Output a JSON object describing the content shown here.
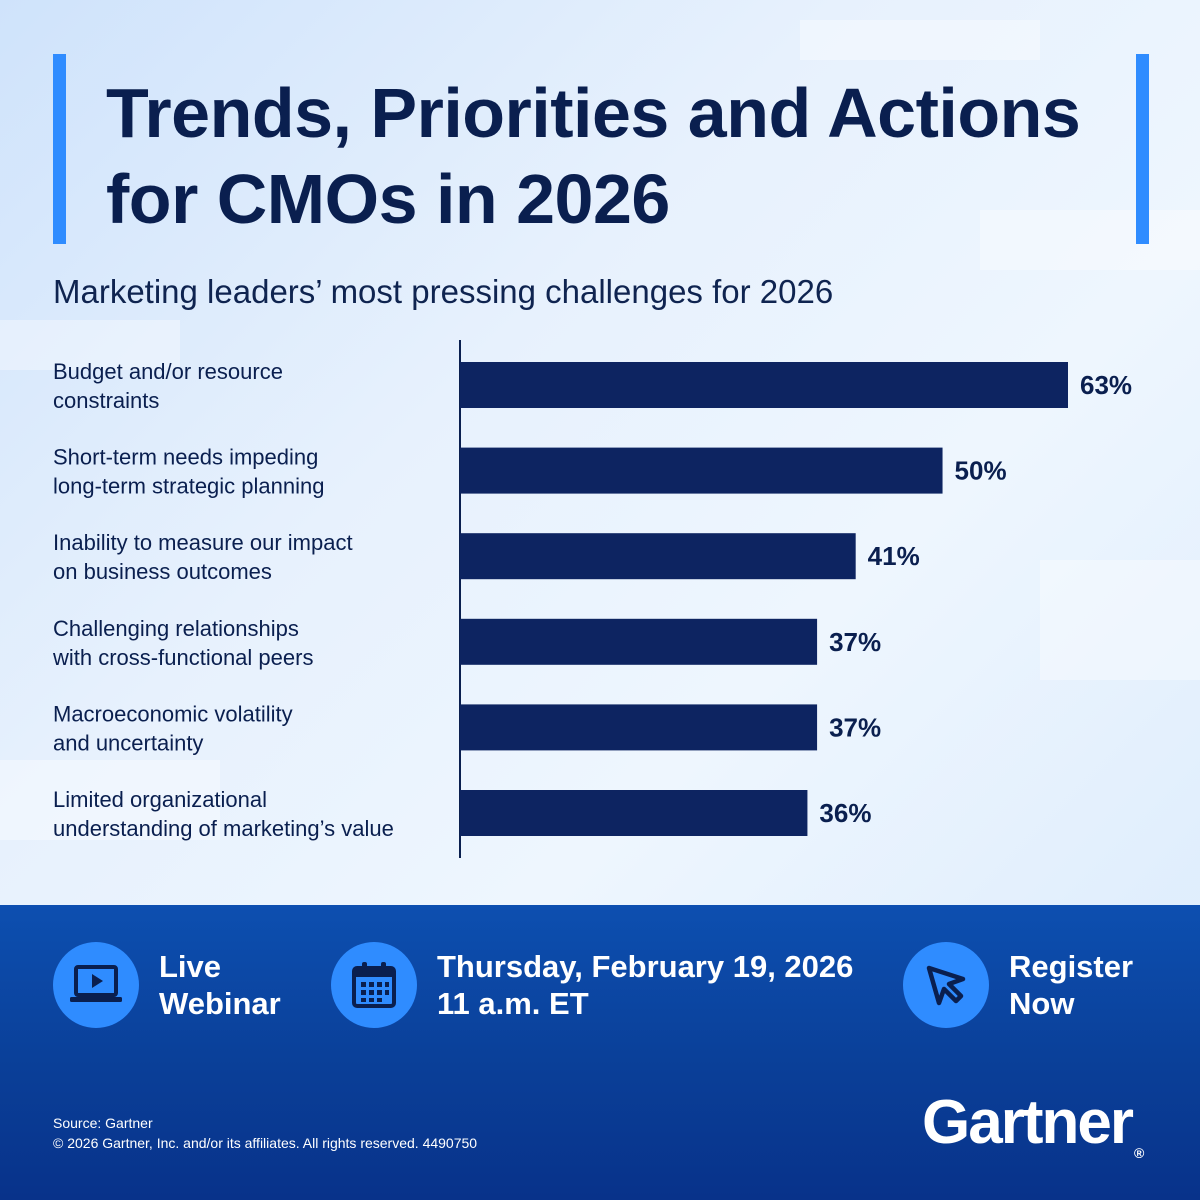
{
  "header": {
    "title_line1": "Trends, Priorities and Actions",
    "title_line2": "for CMOs in 2026",
    "subtitle": "Marketing leaders’ most pressing challenges for 2026"
  },
  "chart_data": {
    "type": "bar",
    "orientation": "horizontal",
    "title": "Marketing leaders’ most pressing challenges for 2026",
    "categories": [
      [
        "Budget and/or resource",
        "constraints"
      ],
      [
        "Short-term needs impeding",
        "long-term strategic planning"
      ],
      [
        "Inability to measure our impact",
        "on business outcomes"
      ],
      [
        "Challenging relationships",
        "with cross-functional peers"
      ],
      [
        "Macroeconomic volatility",
        "and uncertainty"
      ],
      [
        "Limited organizational",
        "understanding of marketing’s value"
      ]
    ],
    "values": [
      63,
      50,
      41,
      37,
      37,
      36
    ],
    "value_labels": [
      "63%",
      "50%",
      "41%",
      "37%",
      "37%",
      "36%"
    ],
    "unit": "%",
    "xlim": [
      0,
      63
    ],
    "grid": false,
    "bar_color": "#0d2461"
  },
  "footer": {
    "webinar_line1": "Live",
    "webinar_line2": "Webinar",
    "date_line1": "Thursday, February 19, 2026",
    "date_line2": "11 a.m. ET",
    "register_line1": "Register",
    "register_line2": "Now",
    "source_line1": "Source: Gartner",
    "source_line2": "© 2026 Gartner, Inc. and/or its affiliates. All rights reserved. 4490750",
    "logo_text": "Gartner",
    "logo_mark": "®"
  },
  "colors": {
    "accent": "#2f8cff",
    "navy": "#0a1f4f",
    "footer_blue": "#0a3f98"
  },
  "icons": [
    "laptop-play-icon",
    "calendar-icon",
    "cursor-arrow-icon"
  ]
}
